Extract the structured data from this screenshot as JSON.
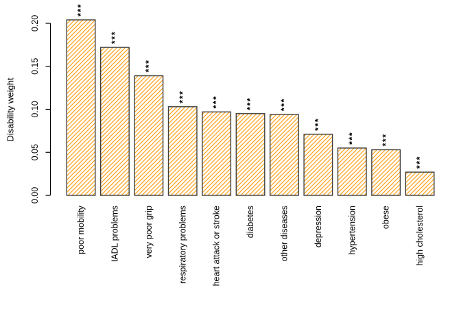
{
  "chart_data": {
    "type": "bar",
    "title": "",
    "ylabel": "Disability weight",
    "xlabel": "",
    "categories": [
      "poor mobility",
      "IADL problems",
      "very poor grip",
      "respiratory problems",
      "heart attack or stroke",
      "diabetes",
      "other diseases",
      "depression",
      "hypertension",
      "obese",
      "high cholesterol"
    ],
    "values": [
      0.204,
      0.172,
      0.139,
      0.103,
      0.097,
      0.095,
      0.094,
      0.071,
      0.055,
      0.053,
      0.027
    ],
    "significance": [
      "***",
      "***",
      "***",
      "***",
      "***",
      "***",
      "***",
      "***",
      "***",
      "***",
      "***"
    ],
    "yticks": [
      0.0,
      0.05,
      0.1,
      0.15,
      0.2
    ],
    "ytick_labels": [
      "0.00",
      "0.05",
      "0.10",
      "0.15",
      "0.20"
    ],
    "ylim": [
      0,
      0.223
    ],
    "grid": false,
    "legend": null,
    "bar_style": "diagonal-hatch",
    "colors": {
      "hatch": "#FFA420",
      "bar_fill": "#FFFFFF",
      "bar_border": "#3F3F3F",
      "significance": "#8B1A1A",
      "axis": "#000000"
    }
  }
}
